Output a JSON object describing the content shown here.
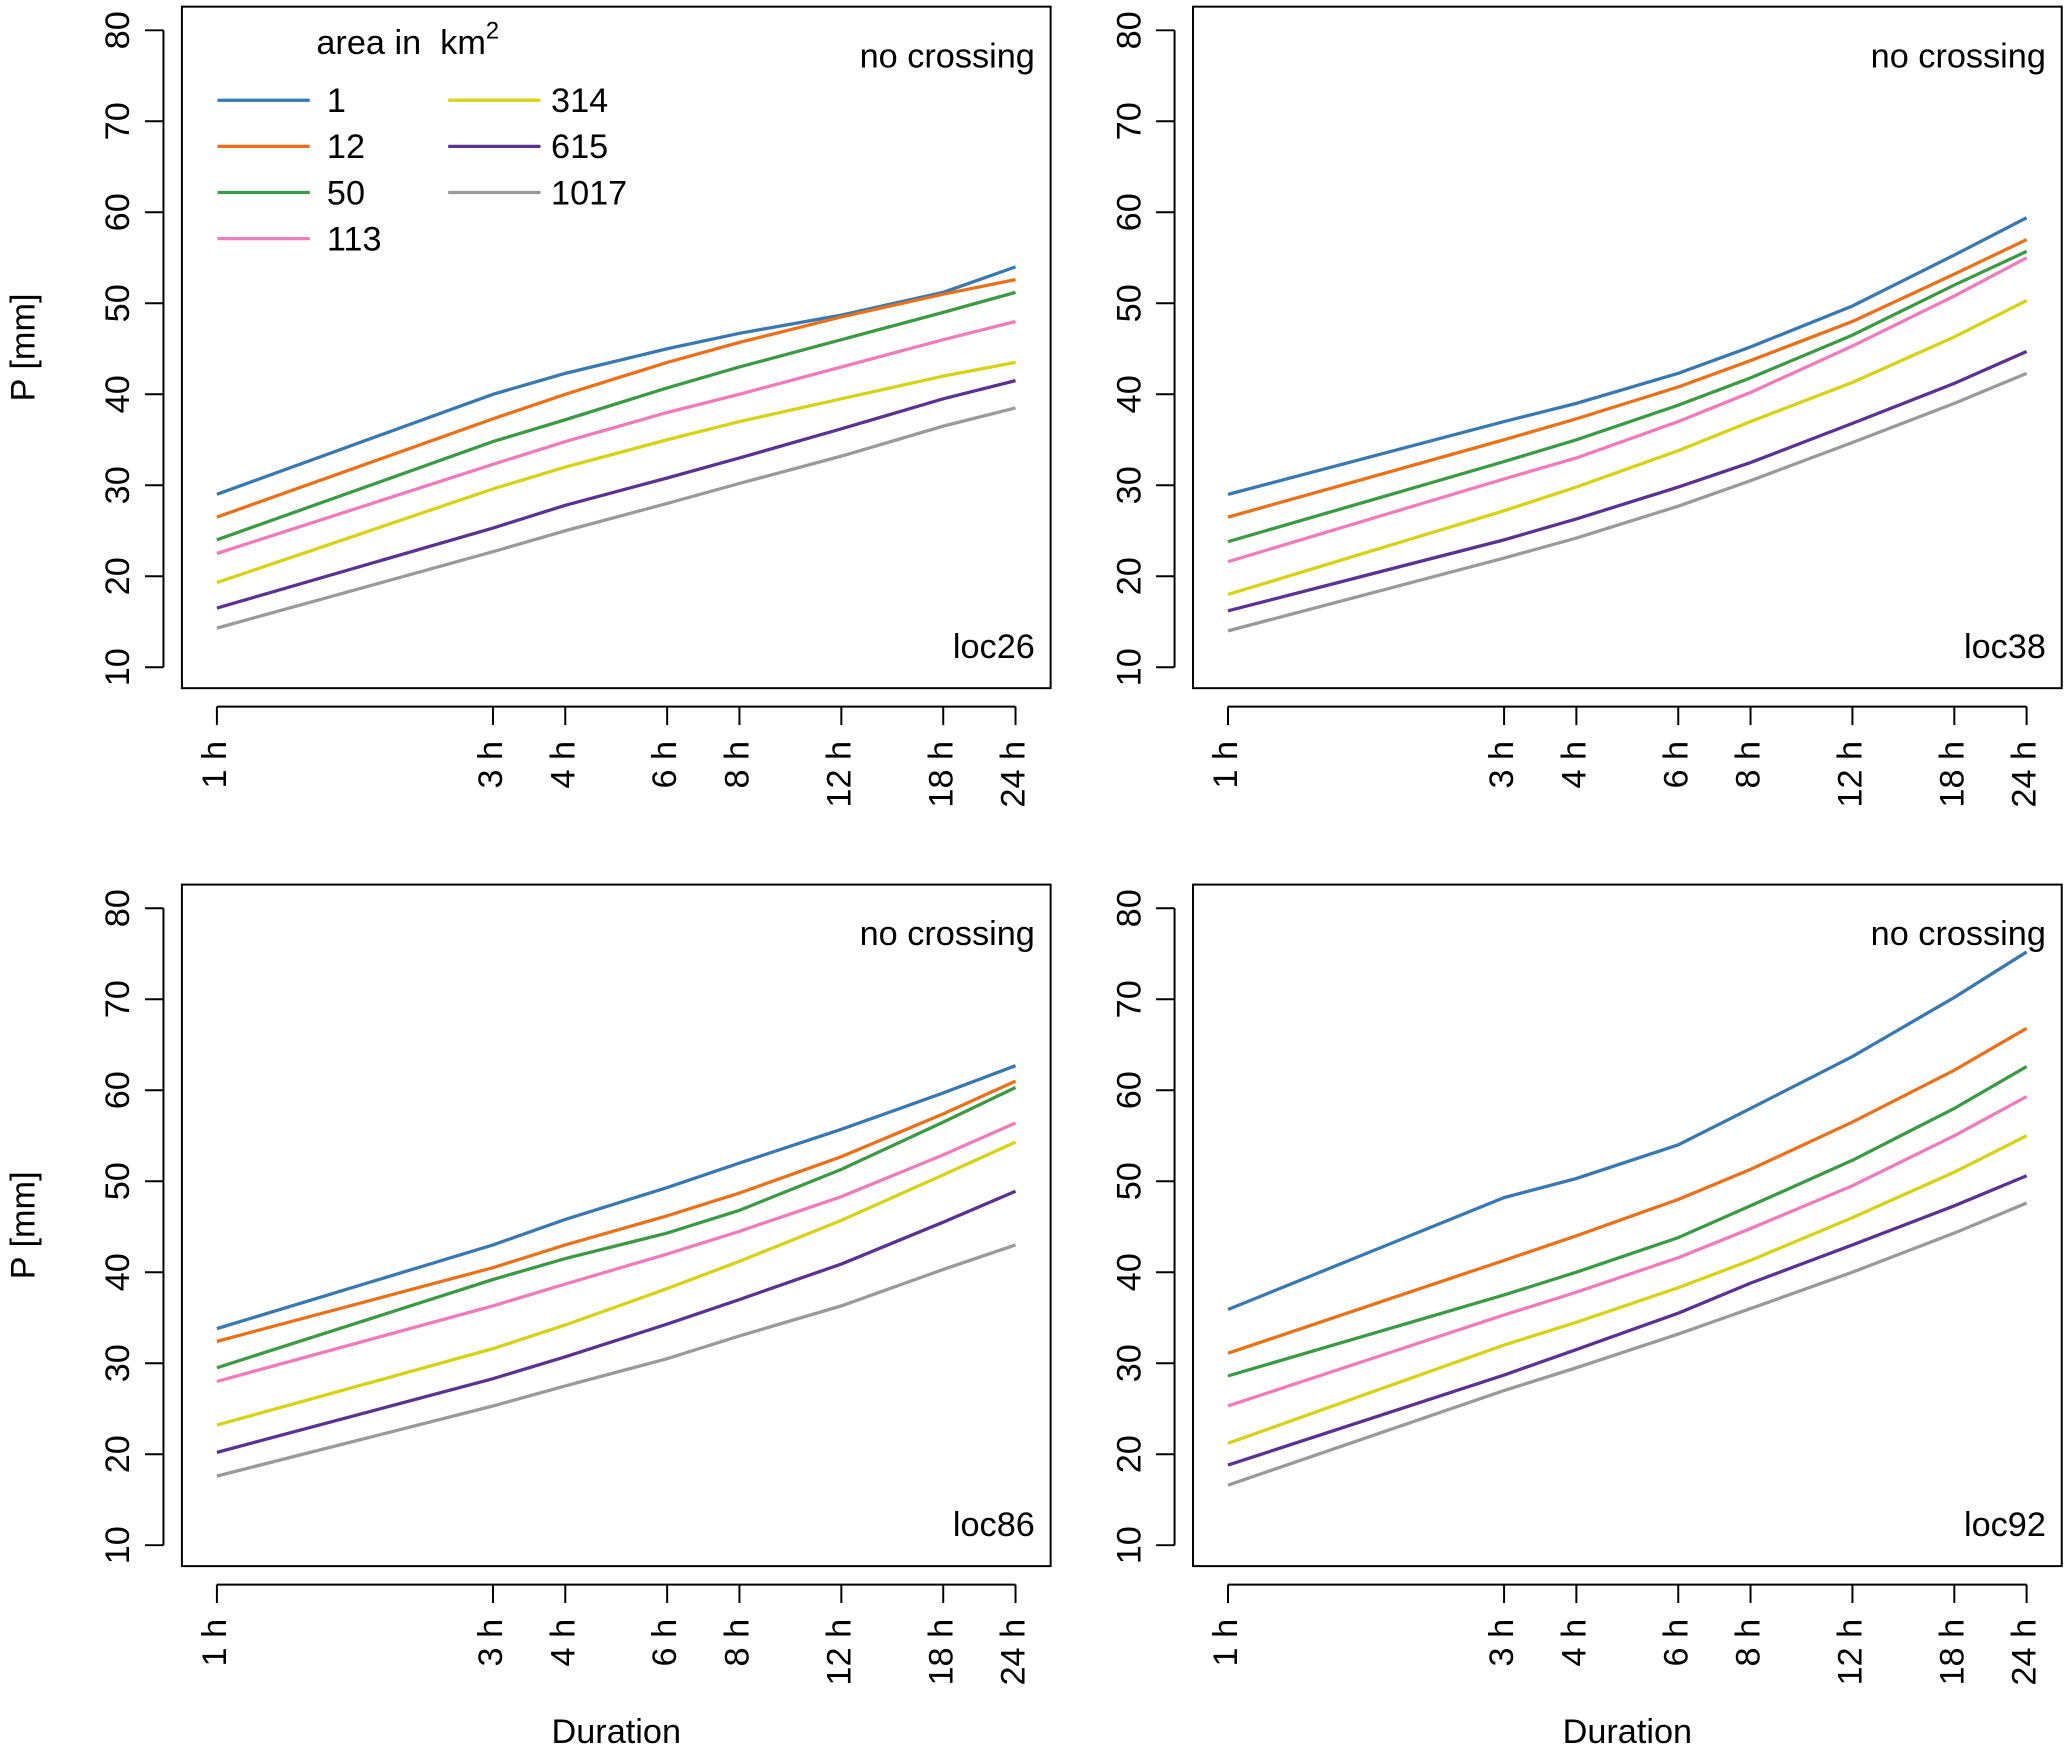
{
  "chart_data": [
    {
      "type": "line",
      "ylabel": "P [mm]",
      "annotation": "no crossing",
      "label": "loc26",
      "legend_title": "area in  km",
      "legend_title_sup": "2",
      "x": [
        1,
        3,
        4,
        6,
        8,
        12,
        18,
        24
      ],
      "log_x": true,
      "xlim": [
        0.87,
        27.6
      ],
      "xticks": [
        {
          "value": 1,
          "label": "1 h"
        },
        {
          "value": 3,
          "label": "3 h"
        },
        {
          "value": 4,
          "label": "4 h"
        },
        {
          "value": 6,
          "label": "6 h"
        },
        {
          "value": 8,
          "label": "8 h"
        },
        {
          "value": 12,
          "label": "12 h"
        },
        {
          "value": 18,
          "label": "18 h"
        },
        {
          "value": 24,
          "label": "24 h"
        }
      ],
      "ylim": [
        7.7,
        82.6
      ],
      "yticks": [
        10,
        20,
        30,
        40,
        50,
        60,
        70,
        80
      ],
      "series": [
        {
          "name": "1",
          "color": "#3a78b0",
          "values": [
            29,
            40,
            42.3,
            45,
            46.7,
            48.7,
            51.2,
            54
          ]
        },
        {
          "name": "12",
          "color": "#e8711a",
          "values": [
            26.5,
            37.3,
            40,
            43.5,
            45.7,
            48.5,
            51,
            52.6
          ]
        },
        {
          "name": "50",
          "color": "#3c9a44",
          "values": [
            24,
            34.8,
            37.2,
            40.7,
            43,
            46,
            49,
            51.2
          ]
        },
        {
          "name": "113",
          "color": "#ee7cbc",
          "values": [
            22.5,
            32.3,
            34.8,
            38,
            40,
            43,
            46,
            48
          ]
        },
        {
          "name": "314",
          "color": "#d8d214",
          "values": [
            19.3,
            29.6,
            32,
            35,
            37,
            39.5,
            42,
            43.5
          ]
        },
        {
          "name": "615",
          "color": "#5c3290",
          "values": [
            16.5,
            25.3,
            27.8,
            30.8,
            33,
            36.2,
            39.5,
            41.5
          ]
        },
        {
          "name": "1017",
          "color": "#9a9a9a",
          "values": [
            14.3,
            22.7,
            25,
            28,
            30.2,
            33.2,
            36.5,
            38.5
          ]
        }
      ]
    },
    {
      "type": "line",
      "annotation": "no crossing",
      "label": "loc38",
      "x": [
        1,
        3,
        4,
        6,
        8,
        12,
        18,
        24
      ],
      "log_x": true,
      "xlim": [
        0.87,
        27.6
      ],
      "xticks": [
        {
          "value": 1,
          "label": "1 h"
        },
        {
          "value": 3,
          "label": "3 h"
        },
        {
          "value": 4,
          "label": "4 h"
        },
        {
          "value": 6,
          "label": "6 h"
        },
        {
          "value": 8,
          "label": "8 h"
        },
        {
          "value": 12,
          "label": "12 h"
        },
        {
          "value": 18,
          "label": "18 h"
        },
        {
          "value": 24,
          "label": "24 h"
        }
      ],
      "ylim": [
        7.7,
        82.6
      ],
      "yticks": [
        10,
        20,
        30,
        40,
        50,
        60,
        70,
        80
      ],
      "series": [
        {
          "color": "#3a78b0",
          "values": [
            29,
            37,
            39,
            42.3,
            45.2,
            49.7,
            55.3,
            59.4
          ]
        },
        {
          "color": "#e8711a",
          "values": [
            26.5,
            35,
            37.3,
            40.8,
            43.7,
            48,
            53.2,
            57
          ]
        },
        {
          "color": "#3c9a44",
          "values": [
            23.8,
            32.6,
            35,
            38.8,
            41.8,
            46.5,
            52,
            55.7
          ]
        },
        {
          "color": "#ee7cbc",
          "values": [
            21.6,
            30.7,
            33,
            37,
            40.2,
            45.3,
            50.8,
            55
          ]
        },
        {
          "color": "#d8d214",
          "values": [
            18,
            27.2,
            29.8,
            33.8,
            37,
            41.3,
            46.3,
            50.3
          ]
        },
        {
          "color": "#5c3290",
          "values": [
            16.2,
            24,
            26.3,
            29.8,
            32.5,
            36.8,
            41.2,
            44.7
          ]
        },
        {
          "color": "#9a9a9a",
          "values": [
            14,
            22,
            24.2,
            27.7,
            30.5,
            34.7,
            39,
            42.3
          ]
        }
      ]
    },
    {
      "type": "line",
      "ylabel": "P [mm]",
      "xlabel": "Duration",
      "annotation": "no crossing",
      "label": "loc86",
      "x": [
        1,
        3,
        4,
        6,
        8,
        12,
        18,
        24
      ],
      "log_x": true,
      "xlim": [
        0.87,
        27.6
      ],
      "xticks": [
        {
          "value": 1,
          "label": "1 h"
        },
        {
          "value": 3,
          "label": "3 h"
        },
        {
          "value": 4,
          "label": "4 h"
        },
        {
          "value": 6,
          "label": "6 h"
        },
        {
          "value": 8,
          "label": "8 h"
        },
        {
          "value": 12,
          "label": "12 h"
        },
        {
          "value": 18,
          "label": "18 h"
        },
        {
          "value": 24,
          "label": "24 h"
        }
      ],
      "ylim": [
        7.7,
        82.6
      ],
      "yticks": [
        10,
        20,
        30,
        40,
        50,
        60,
        70,
        80
      ],
      "series": [
        {
          "color": "#3a78b0",
          "values": [
            33.8,
            43,
            45.8,
            49.3,
            52,
            55.7,
            59.7,
            62.7
          ]
        },
        {
          "color": "#e8711a",
          "values": [
            32.4,
            40.5,
            43,
            46.2,
            48.7,
            52.7,
            57.4,
            61
          ]
        },
        {
          "color": "#3c9a44",
          "values": [
            29.5,
            39.2,
            41.5,
            44.3,
            46.8,
            51.3,
            56.5,
            60.3
          ]
        },
        {
          "color": "#ee7cbc",
          "values": [
            28,
            36.3,
            38.7,
            42,
            44.5,
            48.3,
            52.9,
            56.4
          ]
        },
        {
          "color": "#d8d214",
          "values": [
            23.2,
            31.6,
            34.2,
            38.2,
            41.2,
            45.7,
            50.7,
            54.3
          ]
        },
        {
          "color": "#5c3290",
          "values": [
            20.2,
            28.3,
            30.7,
            34.3,
            37,
            40.9,
            45.5,
            48.9
          ]
        },
        {
          "color": "#9a9a9a",
          "values": [
            17.6,
            25.3,
            27.5,
            30.5,
            33,
            36.3,
            40.3,
            43
          ]
        }
      ]
    },
    {
      "type": "line",
      "xlabel": "Duration",
      "annotation": "no crossing",
      "label": "loc92",
      "x": [
        1,
        3,
        4,
        6,
        8,
        12,
        18,
        24
      ],
      "log_x": true,
      "xlim": [
        0.87,
        27.6
      ],
      "xticks": [
        {
          "value": 1,
          "label": "1 h"
        },
        {
          "value": 3,
          "label": "3 h"
        },
        {
          "value": 4,
          "label": "4 h"
        },
        {
          "value": 6,
          "label": "6 h"
        },
        {
          "value": 8,
          "label": "8 h"
        },
        {
          "value": 12,
          "label": "12 h"
        },
        {
          "value": 18,
          "label": "18 h"
        },
        {
          "value": 24,
          "label": "24 h"
        }
      ],
      "ylim": [
        7.7,
        82.6
      ],
      "yticks": [
        10,
        20,
        30,
        40,
        50,
        60,
        70,
        80
      ],
      "series": [
        {
          "color": "#3a78b0",
          "values": [
            35.9,
            48.2,
            50.3,
            54,
            58,
            63.7,
            70.2,
            75.2
          ]
        },
        {
          "color": "#e8711a",
          "values": [
            31.1,
            41.3,
            44,
            48,
            51.3,
            56.5,
            62.2,
            66.8
          ]
        },
        {
          "color": "#3c9a44",
          "values": [
            28.6,
            37.5,
            40,
            43.8,
            47.3,
            52.3,
            58,
            62.6
          ]
        },
        {
          "color": "#ee7cbc",
          "values": [
            25.3,
            35.3,
            37.8,
            41.6,
            44.8,
            49.5,
            55,
            59.3
          ]
        },
        {
          "color": "#d8d214",
          "values": [
            21.2,
            32,
            34.5,
            38.3,
            41.3,
            46,
            51,
            55
          ]
        },
        {
          "color": "#5c3290",
          "values": [
            18.8,
            28.7,
            31.5,
            35.5,
            38.8,
            43,
            47.3,
            50.6
          ]
        },
        {
          "color": "#9a9a9a",
          "values": [
            16.6,
            27,
            29.5,
            33.2,
            36,
            40,
            44.3,
            47.6
          ]
        }
      ]
    }
  ]
}
